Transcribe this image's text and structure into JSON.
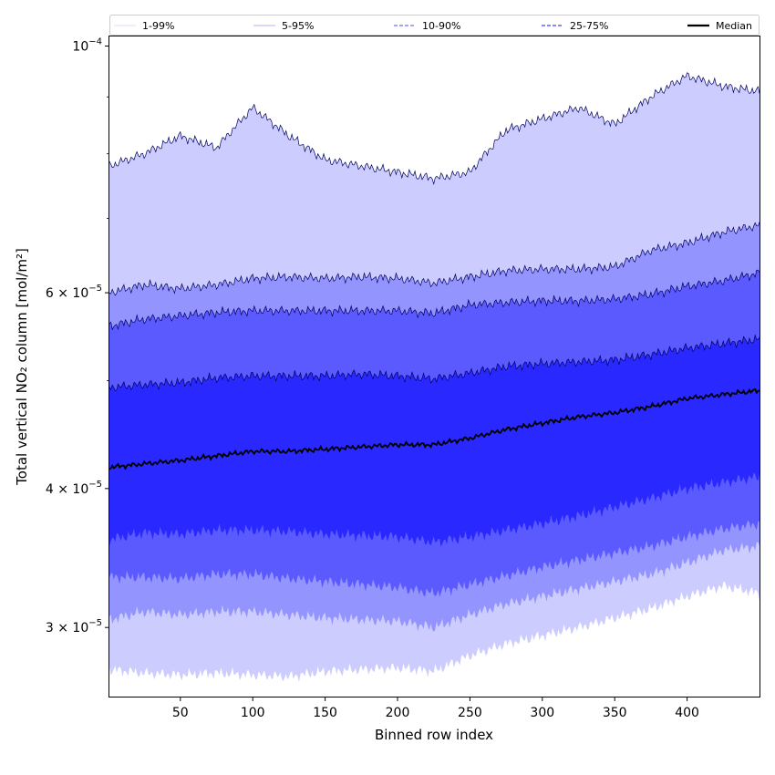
{
  "chart_data": {
    "type": "area",
    "title": "",
    "xlabel": "Binned row index",
    "ylabel": "Total vertical NO₂ column [mol/m²]",
    "xlim": [
      1,
      450
    ],
    "ylim": [
      2.6e-05,
      0.000102
    ],
    "yscale": "log",
    "x_ticks": [
      50,
      100,
      150,
      200,
      250,
      300,
      350,
      400
    ],
    "x_tick_labels": [
      "50",
      "100",
      "150",
      "200",
      "250",
      "300",
      "350",
      "400"
    ],
    "y_ticks": [
      {
        "value": 0.0001,
        "base": "10",
        "exp": "−4"
      },
      {
        "value": 6e-05,
        "base": "6 × 10",
        "exp": "−5"
      },
      {
        "value": 4e-05,
        "base": "4 × 10",
        "exp": "−5"
      },
      {
        "value": 3e-05,
        "base": "3 × 10",
        "exp": "−5"
      }
    ],
    "y_minor_ticks": [
      9e-05,
      8e-05,
      7e-05,
      5e-05
    ],
    "grid": false,
    "legend_position": "top",
    "legend": [
      {
        "label": "1-99%",
        "color": "#d0d0ff",
        "style": "solid-thin"
      },
      {
        "label": "5-95%",
        "color": "#9898ff",
        "style": "solid-thin"
      },
      {
        "label": "10-90%",
        "color": "#7070ff",
        "style": "dashed"
      },
      {
        "label": "25-75%",
        "color": "#4040ff",
        "style": "dashed"
      },
      {
        "label": "Median",
        "color": "#000000",
        "style": "solid-thick"
      }
    ],
    "x": [
      1,
      25,
      50,
      75,
      100,
      125,
      150,
      175,
      200,
      225,
      250,
      275,
      300,
      325,
      350,
      375,
      400,
      425,
      450
    ],
    "bands": [
      {
        "name": "1-99%",
        "color": "#ccccff",
        "lower": [
          2.75e-05,
          2.73e-05,
          2.72e-05,
          2.73e-05,
          2.72e-05,
          2.71e-05,
          2.74e-05,
          2.75e-05,
          2.76e-05,
          2.74e-05,
          2.83e-05,
          2.9e-05,
          2.95e-05,
          3e-05,
          3.06e-05,
          3.12e-05,
          3.2e-05,
          3.27e-05,
          3.22e-05
        ],
        "upper": [
          7.8e-05,
          8e-05,
          8.3e-05,
          8.1e-05,
          8.8e-05,
          8.3e-05,
          7.9e-05,
          7.8e-05,
          7.7e-05,
          7.6e-05,
          7.7e-05,
          8.4e-05,
          8.6e-05,
          8.8e-05,
          8.5e-05,
          9e-05,
          9.4e-05,
          9.2e-05,
          9.1e-05
        ]
      },
      {
        "name": "5-95%",
        "color": "#9494ff",
        "lower": [
          3.05e-05,
          3.1e-05,
          3.08e-05,
          3.1e-05,
          3.1e-05,
          3.08e-05,
          3.06e-05,
          3.05e-05,
          3.04e-05,
          3e-05,
          3.08e-05,
          3.15e-05,
          3.2e-05,
          3.25e-05,
          3.3e-05,
          3.35e-05,
          3.43e-05,
          3.52e-05,
          3.55e-05
        ],
        "upper": [
          6e-05,
          6.1e-05,
          6.05e-05,
          6.1e-05,
          6.18e-05,
          6.2e-05,
          6.18e-05,
          6.2e-05,
          6.18e-05,
          6.12e-05,
          6.2e-05,
          6.28e-05,
          6.3e-05,
          6.3e-05,
          6.33e-05,
          6.55e-05,
          6.65e-05,
          6.8e-05,
          6.9e-05
        ]
      },
      {
        "name": "10-90%",
        "color": "#5a5aff",
        "lower": [
          3.33e-05,
          3.33e-05,
          3.32e-05,
          3.35e-05,
          3.35e-05,
          3.32e-05,
          3.3e-05,
          3.28e-05,
          3.26e-05,
          3.22e-05,
          3.28e-05,
          3.34e-05,
          3.4e-05,
          3.45e-05,
          3.5e-05,
          3.55e-05,
          3.62e-05,
          3.68e-05,
          3.72e-05
        ],
        "upper": [
          5.6e-05,
          5.68e-05,
          5.72e-05,
          5.76e-05,
          5.78e-05,
          5.78e-05,
          5.78e-05,
          5.78e-05,
          5.78e-05,
          5.75e-05,
          5.85e-05,
          5.88e-05,
          5.9e-05,
          5.9e-05,
          5.92e-05,
          5.98e-05,
          6.08e-05,
          6.15e-05,
          6.25e-05
        ]
      },
      {
        "name": "25-75%",
        "color": "#2828ff",
        "lower": [
          3.6e-05,
          3.65e-05,
          3.64e-05,
          3.67e-05,
          3.67e-05,
          3.66e-05,
          3.64e-05,
          3.63e-05,
          3.62e-05,
          3.58e-05,
          3.62e-05,
          3.67e-05,
          3.72e-05,
          3.78e-05,
          3.85e-05,
          3.92e-05,
          4e-05,
          4.05e-05,
          4.1e-05
        ],
        "upper": [
          4.93e-05,
          4.96e-05,
          4.98e-05,
          5.03e-05,
          5.05e-05,
          5.05e-05,
          5.05e-05,
          5.07e-05,
          5.05e-05,
          5.02e-05,
          5.08e-05,
          5.15e-05,
          5.18e-05,
          5.2e-05,
          5.22e-05,
          5.28e-05,
          5.35e-05,
          5.4e-05,
          5.45e-05
        ]
      }
    ],
    "series": [
      {
        "name": "Median",
        "color": "#000000",
        "values": [
          4.18e-05,
          4.21e-05,
          4.24e-05,
          4.28e-05,
          4.32e-05,
          4.32e-05,
          4.34e-05,
          4.36e-05,
          4.38e-05,
          4.38e-05,
          4.44e-05,
          4.52e-05,
          4.58e-05,
          4.64e-05,
          4.68e-05,
          4.74e-05,
          4.82e-05,
          4.86e-05,
          4.9e-05
        ]
      }
    ]
  }
}
